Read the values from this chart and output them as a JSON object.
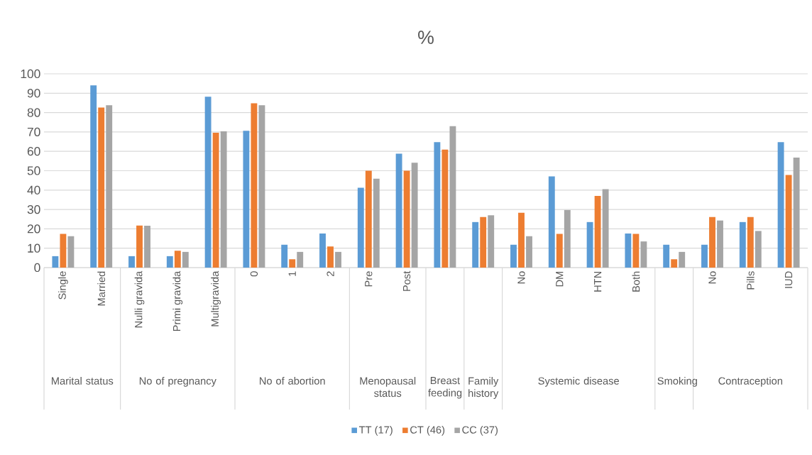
{
  "chart_data": {
    "type": "bar",
    "title": "%",
    "categories": [
      "Single",
      "Married",
      "Nulli gravida",
      "Primi gravida",
      "Multigravida",
      "0",
      "1",
      "2",
      "Pre",
      "Post",
      null,
      null,
      "No",
      "DM",
      "HTN",
      "Both",
      null,
      "No",
      "Pills",
      "IUD"
    ],
    "annotations": [
      "Marital status",
      "No of pregnancy",
      "No of abortion",
      "Menopausal status",
      "Breast feeding",
      "Family history",
      "Systemic disease",
      "Smoking",
      "Contraception"
    ],
    "series": [
      {
        "name": "TT (17)",
        "color": "#5b9bd5",
        "values": [
          5.9,
          94,
          5.9,
          5.9,
          88.2,
          70.6,
          11.8,
          17.6,
          41.2,
          58.8,
          64.7,
          23.5,
          11.8,
          47.1,
          23.5,
          17.6,
          11.8,
          11.8,
          23.5,
          64.7
        ]
      },
      {
        "name": "CT (46)",
        "color": "#ed7d31",
        "values": [
          17.4,
          82.6,
          21.7,
          8.7,
          69.6,
          84.8,
          4.3,
          10.9,
          50,
          50,
          60.9,
          26.1,
          28.3,
          17.4,
          37,
          17.4,
          4.3,
          26.1,
          26.1,
          47.8
        ]
      },
      {
        "name": "CC (37)",
        "color": "#a5a5a5",
        "values": [
          16.2,
          83.8,
          21.6,
          8.1,
          70.3,
          83.8,
          8.1,
          8.1,
          45.9,
          54.1,
          73,
          27,
          16.2,
          29.7,
          40.5,
          13.5,
          8.1,
          24.3,
          18.9,
          56.8
        ]
      }
    ],
    "ylim": [
      0,
      100
    ],
    "yticks": [
      0,
      10,
      20,
      30,
      40,
      50,
      60,
      70,
      80,
      90,
      100
    ],
    "grid": "y",
    "legend": "bottom"
  }
}
